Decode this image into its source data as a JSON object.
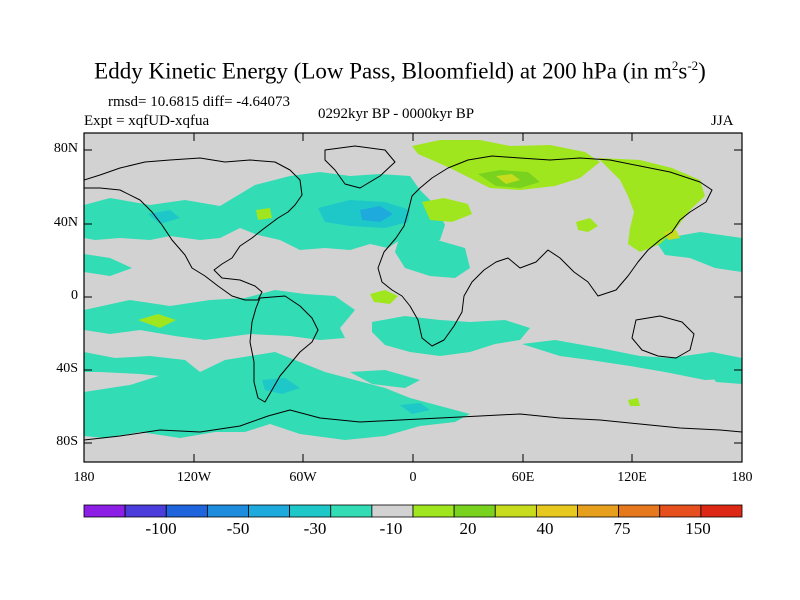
{
  "figure": {
    "title_main": "Eddy Kinetic Energy (Low Pass, Bloomfield) at 200 hPa (in m",
    "title_sup1": "2",
    "title_mid": "s",
    "title_sup2": "-2",
    "title_end": ")",
    "rmsd": "rmsd= 10.6815 diff= -4.64073",
    "expt": "Expt = xqfUD-xqfua",
    "period": "0292kyr BP - 0000kyr BP",
    "season": "JJA"
  },
  "axes": {
    "lat_ticks": [
      "80N",
      "40N",
      "0",
      "40S",
      "80S"
    ],
    "lon_ticks": [
      "180",
      "120W",
      "60W",
      "0",
      "60E",
      "120E",
      "180"
    ]
  },
  "colorbar": {
    "colors": [
      "#8c1ee6",
      "#4b3cdc",
      "#1e64dc",
      "#1e8cdc",
      "#1eaadc",
      "#1ec8c8",
      "#32dcb4",
      "#d2d2d2",
      "#a0e61e",
      "#78d21e",
      "#c8dc1e",
      "#e6c81e",
      "#e6a01e",
      "#e6781e",
      "#e6501e",
      "#dc2814"
    ],
    "labels": [
      "-100",
      "-50",
      "-30",
      "-10",
      "20",
      "40",
      "75",
      "150"
    ]
  },
  "legend_colors": {
    "neutral": "#d2d2d2",
    "cyan": "#32dcb4",
    "light_blue": "#1ec8c8",
    "blue": "#1eaadc",
    "green": "#a0e61e",
    "dark_green": "#78d21e",
    "yellow": "#c8dc1e"
  }
}
